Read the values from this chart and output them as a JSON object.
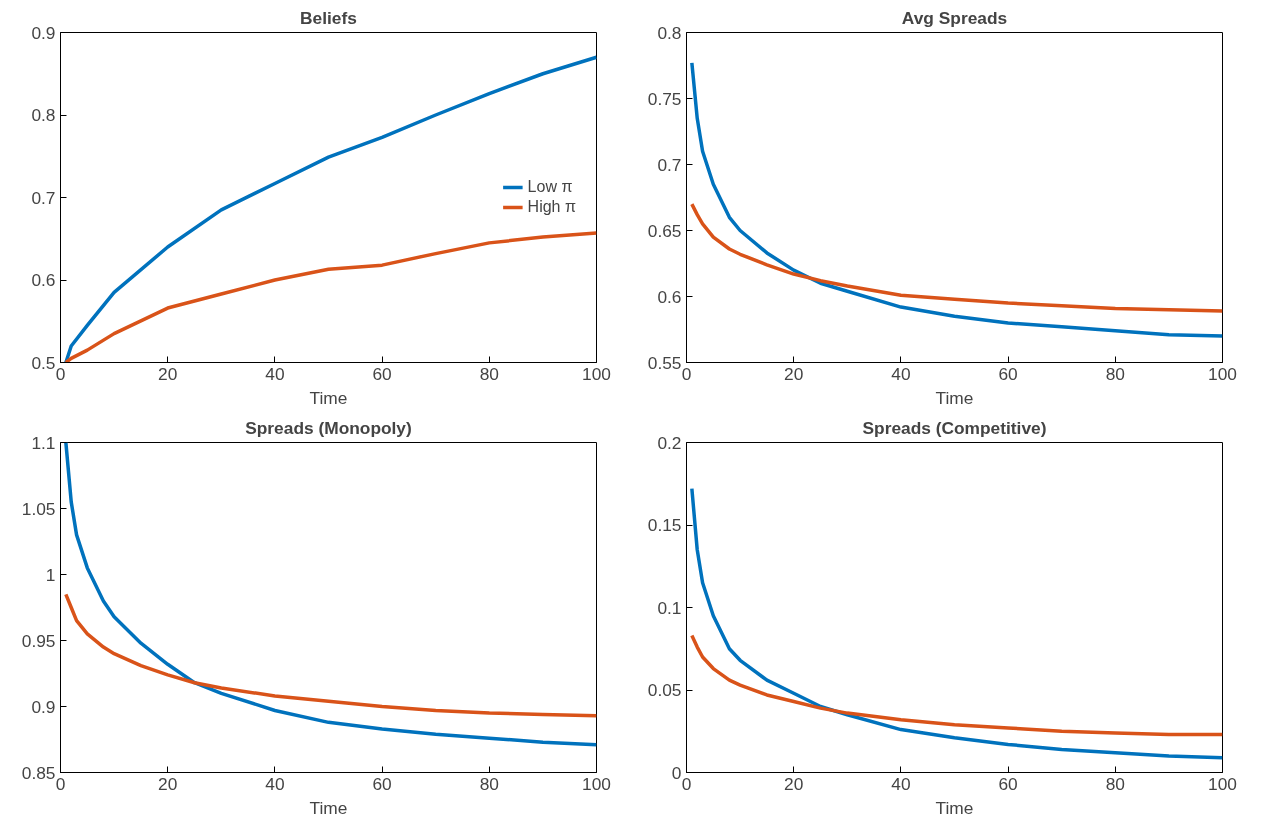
{
  "chart_data": [
    {
      "type": "line",
      "title": "Beliefs",
      "xlabel": "Time",
      "xlim": [
        0,
        100
      ],
      "xticks": [
        0,
        20,
        40,
        60,
        80,
        100
      ],
      "ylim": [
        0.5,
        0.9
      ],
      "yticks": [
        0.5,
        0.6,
        0.7,
        0.8,
        0.9
      ],
      "grid": false,
      "legend": "right",
      "line_style": "solid",
      "x": [
        1,
        2,
        5,
        10,
        20,
        30,
        40,
        50,
        60,
        70,
        80,
        90,
        100
      ],
      "series": [
        {
          "name": "Low π",
          "color": "#0072bd",
          "values": [
            0.5,
            0.52,
            0.545,
            0.585,
            0.64,
            0.685,
            0.717,
            0.749,
            0.773,
            0.8,
            0.826,
            0.85,
            0.87
          ]
        },
        {
          "name": "High π",
          "color": "#d95319",
          "values": [
            0.5,
            0.505,
            0.515,
            0.535,
            0.566,
            0.583,
            0.6,
            0.613,
            0.618,
            0.632,
            0.645,
            0.652,
            0.657
          ]
        }
      ]
    },
    {
      "type": "line",
      "title": "Avg Spreads",
      "xlabel": "Time",
      "xlim": [
        0,
        100
      ],
      "xticks": [
        0,
        20,
        40,
        60,
        80,
        100
      ],
      "ylim": [
        0.55,
        0.8
      ],
      "yticks": [
        0.55,
        0.6,
        0.65,
        0.7,
        0.75,
        0.8
      ],
      "grid": false,
      "line_style": "solid",
      "x": [
        1,
        2,
        3,
        5,
        8,
        10,
        15,
        20,
        25,
        30,
        40,
        50,
        60,
        70,
        80,
        90,
        100
      ],
      "series": [
        {
          "color": "#0072bd",
          "values": [
            0.777,
            0.735,
            0.71,
            0.685,
            0.66,
            0.65,
            0.633,
            0.62,
            0.61,
            0.604,
            0.592,
            0.585,
            0.58,
            0.577,
            0.574,
            0.571,
            0.57
          ]
        },
        {
          "color": "#d95319",
          "values": [
            0.67,
            0.662,
            0.655,
            0.645,
            0.636,
            0.632,
            0.624,
            0.617,
            0.612,
            0.608,
            0.601,
            0.598,
            0.595,
            0.593,
            0.591,
            0.59,
            0.589
          ]
        }
      ]
    },
    {
      "type": "line",
      "title": "Spreads (Monopoly)",
      "xlabel": "Time",
      "xlim": [
        0,
        100
      ],
      "xticks": [
        0,
        20,
        40,
        60,
        80,
        100
      ],
      "ylim": [
        0.85,
        1.1
      ],
      "yticks": [
        0.85,
        0.9,
        0.95,
        1,
        1.05,
        1.1
      ],
      "grid": false,
      "line_style": "solid",
      "x": [
        1,
        2,
        3,
        5,
        8,
        10,
        15,
        20,
        25,
        30,
        40,
        50,
        60,
        70,
        80,
        90,
        100
      ],
      "series": [
        {
          "color": "#0072bd",
          "values": [
            1.1,
            1.055,
            1.03,
            1.005,
            0.98,
            0.968,
            0.948,
            0.932,
            0.918,
            0.91,
            0.897,
            0.888,
            0.883,
            0.879,
            0.876,
            0.873,
            0.871
          ]
        },
        {
          "color": "#d95319",
          "values": [
            0.985,
            0.975,
            0.965,
            0.955,
            0.945,
            0.94,
            0.931,
            0.924,
            0.918,
            0.914,
            0.908,
            0.904,
            0.9,
            0.897,
            0.895,
            0.894,
            0.893
          ]
        }
      ]
    },
    {
      "type": "line",
      "title": "Spreads (Competitive)",
      "xlabel": "Time",
      "xlim": [
        0,
        100
      ],
      "xticks": [
        0,
        20,
        40,
        60,
        80,
        100
      ],
      "ylim": [
        0,
        0.2
      ],
      "yticks": [
        0,
        0.05,
        0.1,
        0.15,
        0.2
      ],
      "grid": false,
      "line_style": "solid",
      "x": [
        1,
        2,
        3,
        5,
        8,
        10,
        15,
        20,
        25,
        30,
        40,
        50,
        60,
        70,
        80,
        90,
        100
      ],
      "series": [
        {
          "color": "#0072bd",
          "values": [
            0.172,
            0.135,
            0.115,
            0.095,
            0.075,
            0.068,
            0.056,
            0.048,
            0.04,
            0.035,
            0.026,
            0.021,
            0.017,
            0.014,
            0.012,
            0.01,
            0.009
          ]
        },
        {
          "color": "#d95319",
          "values": [
            0.083,
            0.076,
            0.07,
            0.063,
            0.056,
            0.053,
            0.047,
            0.043,
            0.039,
            0.036,
            0.032,
            0.029,
            0.027,
            0.025,
            0.024,
            0.023,
            0.023
          ]
        }
      ]
    }
  ]
}
